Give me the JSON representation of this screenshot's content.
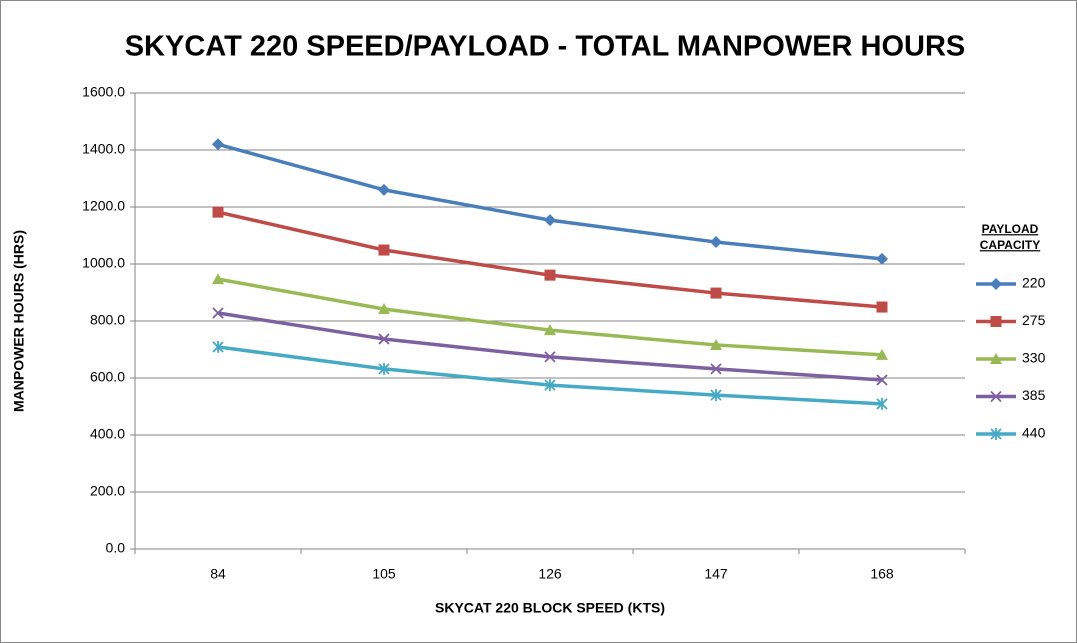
{
  "chart_data": {
    "type": "line",
    "title": "SKYCAT 220 SPEED/PAYLOAD - TOTAL MANPOWER HOURS",
    "x_label": "SKYCAT 220 BLOCK SPEED (KTS)",
    "y_label": "MANPOWER HOURS (HRS)",
    "legend_title": [
      "PAYLOAD",
      "CAPACITY"
    ],
    "legend_position": "right",
    "grid": true,
    "categories": [
      84,
      105,
      126,
      147,
      168
    ],
    "ylim": [
      0,
      1600
    ],
    "yticks": [
      {
        "value": 0,
        "label": "0.0"
      },
      {
        "value": 200,
        "label": "200.0"
      },
      {
        "value": 400,
        "label": "400.0"
      },
      {
        "value": 600,
        "label": "600.0"
      },
      {
        "value": 800,
        "label": "800.0"
      },
      {
        "value": 1000,
        "label": "1000.0"
      },
      {
        "value": 1200,
        "label": "1200.0"
      },
      {
        "value": 1400,
        "label": "1400.0"
      },
      {
        "value": 1600,
        "label": "1600.0"
      }
    ],
    "series": [
      {
        "name": "220",
        "color": "#4a7ebb",
        "marker": "diamond",
        "values": [
          1420,
          1260,
          1154,
          1077,
          1018
        ]
      },
      {
        "name": "275",
        "color": "#be4b48",
        "marker": "square",
        "values": [
          1182,
          1049,
          961,
          898,
          849
        ]
      },
      {
        "name": "330",
        "color": "#98b954",
        "marker": "triangle",
        "values": [
          947,
          842,
          768,
          716,
          681
        ]
      },
      {
        "name": "385",
        "color": "#7d60a0",
        "marker": "x",
        "values": [
          828,
          737,
          674,
          632,
          593
        ]
      },
      {
        "name": "440",
        "color": "#46aac5",
        "marker": "star",
        "values": [
          709,
          632,
          575,
          540,
          509
        ]
      }
    ]
  }
}
